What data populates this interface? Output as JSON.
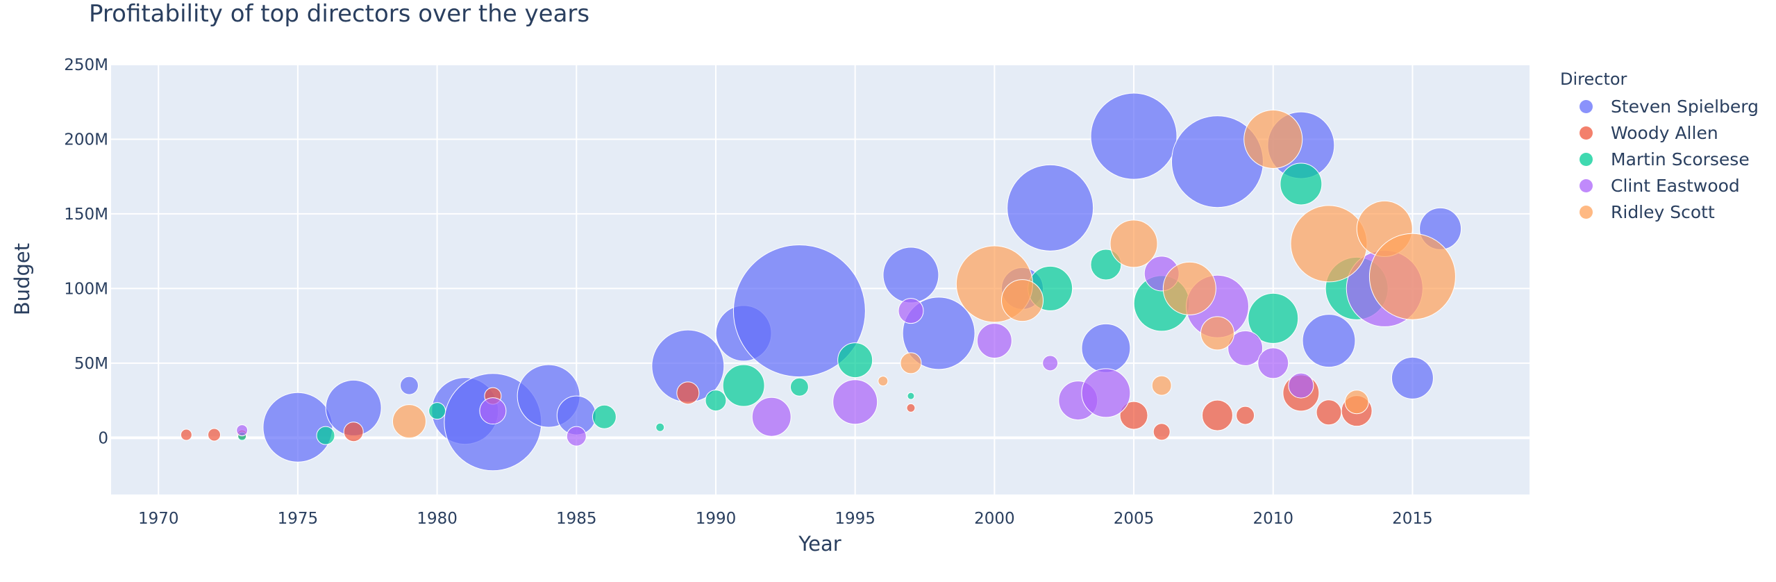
{
  "chart_data": {
    "type": "scatter",
    "title": "Profitability of top directors over the years",
    "xlabel": "Year",
    "ylabel": "Budget",
    "xlim": [
      1968.3,
      2019.2
    ],
    "ylim": [
      -38000000,
      250000000
    ],
    "x_ticks": [
      1970,
      1975,
      1980,
      1985,
      1990,
      1995,
      2000,
      2005,
      2010,
      2015
    ],
    "y_ticks": [
      {
        "value": 0,
        "label": "0"
      },
      {
        "value": 50000000,
        "label": "50M"
      },
      {
        "value": 100000000,
        "label": "100M"
      },
      {
        "value": 150000000,
        "label": "150M"
      },
      {
        "value": 200000000,
        "label": "200M"
      },
      {
        "value": 250000000,
        "label": "250M"
      }
    ],
    "grid": true,
    "legend_title": "Director",
    "legend_position": "top-right",
    "marker_size_note": "bubble size relative",
    "series": [
      {
        "name": "Steven Spielberg",
        "color": "#636efa",
        "points": [
          {
            "x": 1975,
            "y": 7000000,
            "s": 50
          },
          {
            "x": 1977,
            "y": 20000000,
            "s": 40
          },
          {
            "x": 1979,
            "y": 35000000,
            "s": 13
          },
          {
            "x": 1981,
            "y": 18000000,
            "s": 48
          },
          {
            "x": 1982,
            "y": 10500000,
            "s": 70
          },
          {
            "x": 1984,
            "y": 28000000,
            "s": 45
          },
          {
            "x": 1985,
            "y": 15000000,
            "s": 28
          },
          {
            "x": 1989,
            "y": 48000000,
            "s": 52
          },
          {
            "x": 1991,
            "y": 70000000,
            "s": 40
          },
          {
            "x": 1993,
            "y": 85000000,
            "s": 95
          },
          {
            "x": 1997,
            "y": 109000000,
            "s": 40
          },
          {
            "x": 1998,
            "y": 70000000,
            "s": 52
          },
          {
            "x": 2001,
            "y": 100000000,
            "s": 30
          },
          {
            "x": 2002,
            "y": 154000000,
            "s": 62
          },
          {
            "x": 2004,
            "y": 60000000,
            "s": 35
          },
          {
            "x": 2005,
            "y": 202000000,
            "s": 62
          },
          {
            "x": 2008,
            "y": 185000000,
            "s": 66
          },
          {
            "x": 2011,
            "y": 196000000,
            "s": 48
          },
          {
            "x": 2012,
            "y": 65000000,
            "s": 38
          },
          {
            "x": 2015,
            "y": 40000000,
            "s": 30
          },
          {
            "x": 2016,
            "y": 140000000,
            "s": 30
          }
        ]
      },
      {
        "name": "Woody Allen",
        "color": "#ef553b",
        "points": [
          {
            "x": 1971,
            "y": 2000000,
            "s": 8
          },
          {
            "x": 1972,
            "y": 2000000,
            "s": 9
          },
          {
            "x": 1973,
            "y": 2000000,
            "s": 7
          },
          {
            "x": 1977,
            "y": 4000000,
            "s": 14
          },
          {
            "x": 1982,
            "y": 28000000,
            "s": 12
          },
          {
            "x": 1989,
            "y": 30000000,
            "s": 16
          },
          {
            "x": 1997,
            "y": 20000000,
            "s": 6
          },
          {
            "x": 2005,
            "y": 15000000,
            "s": 20
          },
          {
            "x": 2006,
            "y": 4000000,
            "s": 12
          },
          {
            "x": 2008,
            "y": 15000000,
            "s": 22
          },
          {
            "x": 2009,
            "y": 15000000,
            "s": 13
          },
          {
            "x": 2011,
            "y": 30000000,
            "s": 26
          },
          {
            "x": 2012,
            "y": 17000000,
            "s": 18
          },
          {
            "x": 2013,
            "y": 18000000,
            "s": 22
          }
        ]
      },
      {
        "name": "Martin Scorsese",
        "color": "#00cc96",
        "points": [
          {
            "x": 1973,
            "y": 1000000,
            "s": 6
          },
          {
            "x": 1976,
            "y": 1500000,
            "s": 13
          },
          {
            "x": 1980,
            "y": 18000000,
            "s": 12
          },
          {
            "x": 1986,
            "y": 14000000,
            "s": 17
          },
          {
            "x": 1988,
            "y": 7000000,
            "s": 6
          },
          {
            "x": 1990,
            "y": 25000000,
            "s": 15
          },
          {
            "x": 1991,
            "y": 35000000,
            "s": 30
          },
          {
            "x": 1993,
            "y": 34000000,
            "s": 13
          },
          {
            "x": 1995,
            "y": 52000000,
            "s": 25
          },
          {
            "x": 1997,
            "y": 28000000,
            "s": 5
          },
          {
            "x": 2002,
            "y": 100000000,
            "s": 32
          },
          {
            "x": 2004,
            "y": 116000000,
            "s": 22
          },
          {
            "x": 2006,
            "y": 90000000,
            "s": 40
          },
          {
            "x": 2010,
            "y": 80000000,
            "s": 36
          },
          {
            "x": 2011,
            "y": 170000000,
            "s": 30
          },
          {
            "x": 2013,
            "y": 100000000,
            "s": 45
          }
        ]
      },
      {
        "name": "Clint Eastwood",
        "color": "#ab63fa",
        "points": [
          {
            "x": 1973,
            "y": 5000000,
            "s": 8
          },
          {
            "x": 1982,
            "y": 18000000,
            "s": 19
          },
          {
            "x": 1985,
            "y": 1000000,
            "s": 14
          },
          {
            "x": 1992,
            "y": 14000000,
            "s": 28
          },
          {
            "x": 1995,
            "y": 24000000,
            "s": 32
          },
          {
            "x": 1997,
            "y": 85000000,
            "s": 18
          },
          {
            "x": 2000,
            "y": 65000000,
            "s": 25
          },
          {
            "x": 2002,
            "y": 50000000,
            "s": 11
          },
          {
            "x": 2003,
            "y": 25000000,
            "s": 28
          },
          {
            "x": 2004,
            "y": 30000000,
            "s": 35
          },
          {
            "x": 2006,
            "y": 110000000,
            "s": 25
          },
          {
            "x": 2008,
            "y": 88000000,
            "s": 45
          },
          {
            "x": 2009,
            "y": 60000000,
            "s": 25
          },
          {
            "x": 2010,
            "y": 50000000,
            "s": 22
          },
          {
            "x": 2011,
            "y": 35000000,
            "s": 18
          },
          {
            "x": 2014,
            "y": 100000000,
            "s": 55
          }
        ]
      },
      {
        "name": "Ridley Scott",
        "color": "#ffa15a",
        "points": [
          {
            "x": 1979,
            "y": 11000000,
            "s": 24
          },
          {
            "x": 1996,
            "y": 38000000,
            "s": 7
          },
          {
            "x": 1997,
            "y": 50000000,
            "s": 15
          },
          {
            "x": 2000,
            "y": 103000000,
            "s": 55
          },
          {
            "x": 2001,
            "y": 92000000,
            "s": 30
          },
          {
            "x": 2005,
            "y": 130000000,
            "s": 34
          },
          {
            "x": 2006,
            "y": 35000000,
            "s": 14
          },
          {
            "x": 2007,
            "y": 100000000,
            "s": 38
          },
          {
            "x": 2008,
            "y": 70000000,
            "s": 24
          },
          {
            "x": 2010,
            "y": 200000000,
            "s": 42
          },
          {
            "x": 2012,
            "y": 130000000,
            "s": 55
          },
          {
            "x": 2013,
            "y": 24000000,
            "s": 17
          },
          {
            "x": 2014,
            "y": 140000000,
            "s": 40
          },
          {
            "x": 2015,
            "y": 108000000,
            "s": 62
          }
        ]
      }
    ]
  }
}
